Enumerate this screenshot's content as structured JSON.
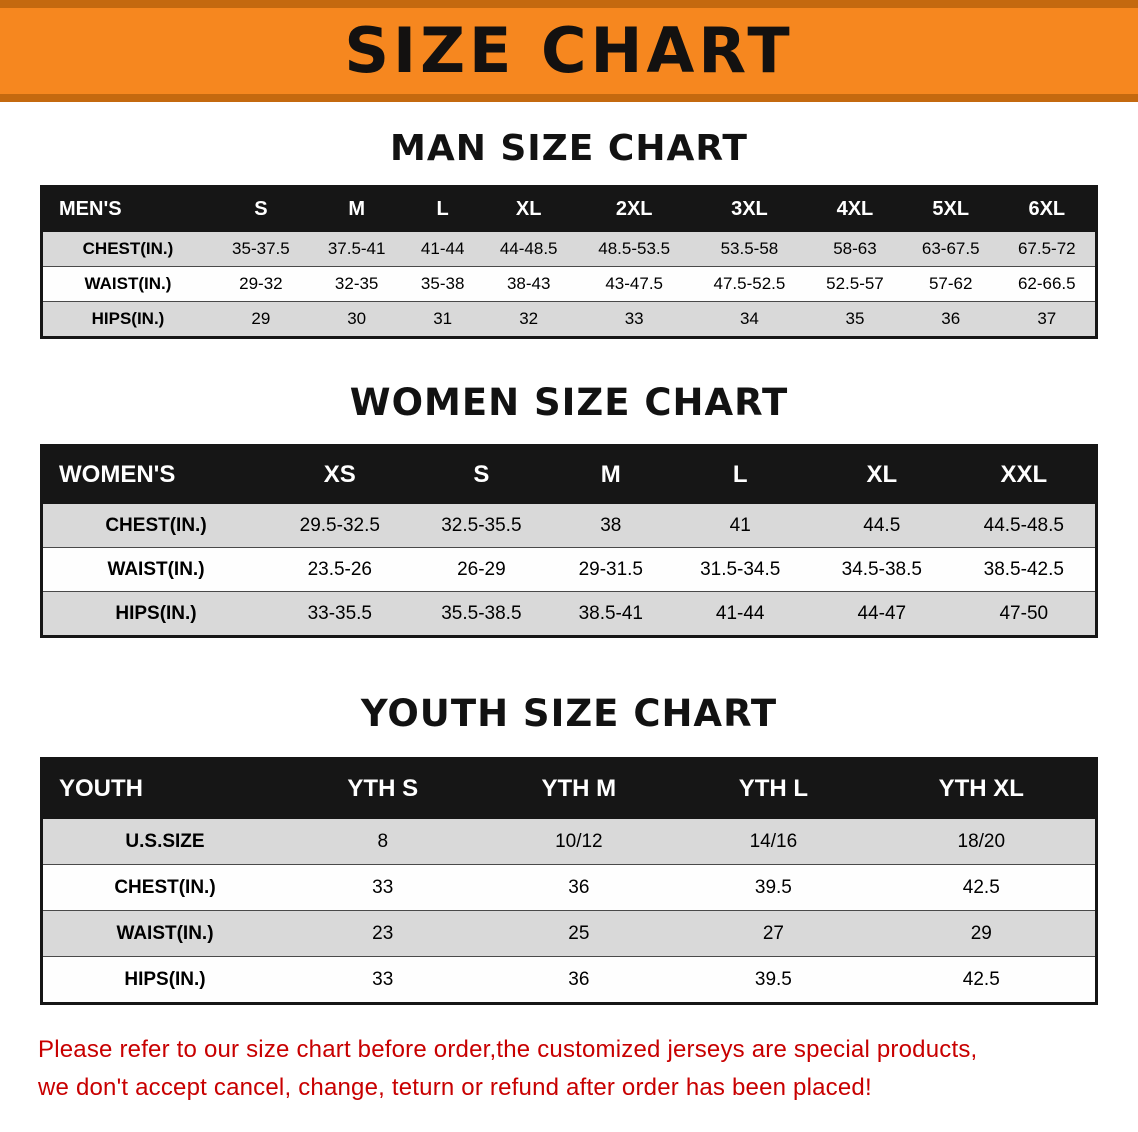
{
  "banner": {
    "title": "SIZE CHART"
  },
  "sections": [
    {
      "heading": "MAN SIZE CHART",
      "table": {
        "header": [
          "MEN'S",
          "S",
          "M",
          "L",
          "XL",
          "2XL",
          "3XL",
          "4XL",
          "5XL",
          "6XL"
        ],
        "rows": [
          [
            "CHEST(IN.)",
            "35-37.5",
            "37.5-41",
            "41-44",
            "44-48.5",
            "48.5-53.5",
            "53.5-58",
            "58-63",
            "63-67.5",
            "67.5-72"
          ],
          [
            "WAIST(IN.)",
            "29-32",
            "32-35",
            "35-38",
            "38-43",
            "43-47.5",
            "47.5-52.5",
            "52.5-57",
            "57-62",
            "62-66.5"
          ],
          [
            "HIPS(IN.)",
            "29",
            "30",
            "31",
            "32",
            "33",
            "34",
            "35",
            "36",
            "37"
          ]
        ]
      }
    },
    {
      "heading": "WOMEN SIZE CHART",
      "table": {
        "header": [
          "WOMEN'S",
          "XS",
          "S",
          "M",
          "L",
          "XL",
          "XXL"
        ],
        "rows": [
          [
            "CHEST(IN.)",
            "29.5-32.5",
            "32.5-35.5",
            "38",
            "41",
            "44.5",
            "44.5-48.5"
          ],
          [
            "WAIST(IN.)",
            "23.5-26",
            "26-29",
            "29-31.5",
            "31.5-34.5",
            "34.5-38.5",
            "38.5-42.5"
          ],
          [
            "HIPS(IN.)",
            "33-35.5",
            "35.5-38.5",
            "38.5-41",
            "41-44",
            "44-47",
            "47-50"
          ]
        ]
      }
    },
    {
      "heading": "YOUTH SIZE CHART",
      "table": {
        "header": [
          "YOUTH",
          "YTH S",
          "YTH M",
          "YTH L",
          "YTH XL"
        ],
        "rows": [
          [
            "U.S.SIZE",
            "8",
            "10/12",
            "14/16",
            "18/20"
          ],
          [
            "CHEST(IN.)",
            "33",
            "36",
            "39.5",
            "42.5"
          ],
          [
            "WAIST(IN.)",
            "23",
            "25",
            "27",
            "29"
          ],
          [
            "HIPS(IN.)",
            "33",
            "36",
            "39.5",
            "42.5"
          ]
        ]
      }
    }
  ],
  "disclaimer": {
    "line1": "Please refer to our size chart before order,the customized jerseys are special products,",
    "line2": "we don't accept cancel, change, teturn or refund after order has been placed!"
  },
  "colors": {
    "banner_orange": "#F6871F",
    "banner_edge": "#C4690F",
    "header_black": "#161616",
    "row_gray": "#D9D9D9",
    "disclaimer_red": "#C80000"
  }
}
